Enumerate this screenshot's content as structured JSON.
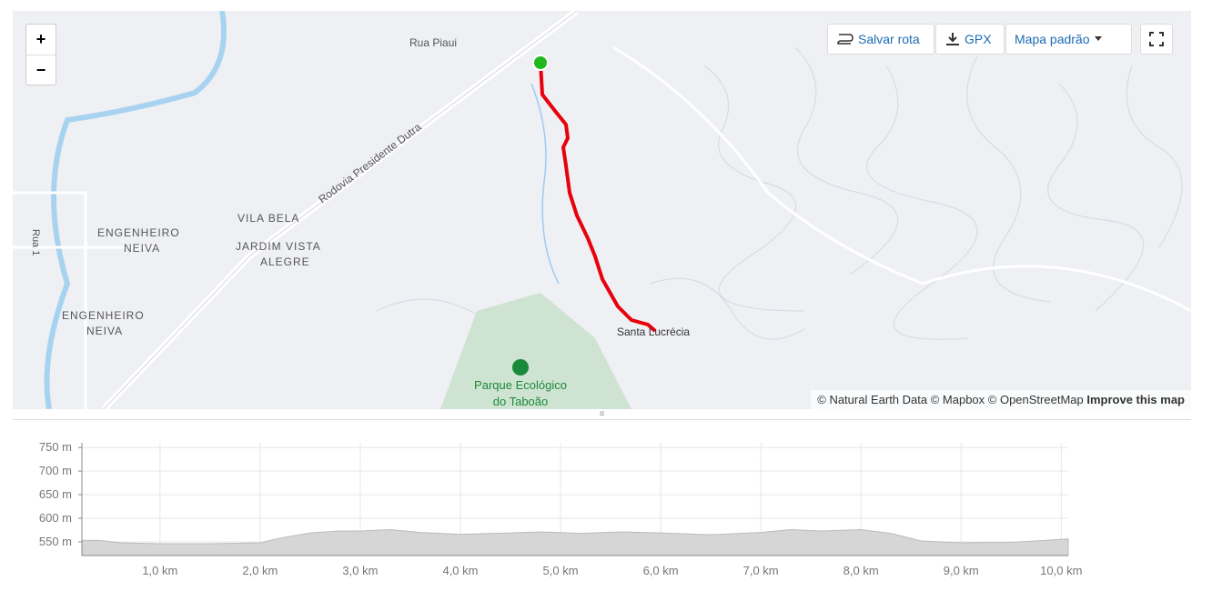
{
  "map": {
    "zoom_in": "+",
    "zoom_out": "−",
    "toolbar": {
      "save_route": "Salvar rota",
      "gpx": "GPX",
      "map_style": "Mapa padrão"
    },
    "labels": {
      "rua_piaui": "Rua Piaui",
      "dutra": "Rodovia Presidente Dutra",
      "vila_bela": "VILA BELA",
      "jardim_1": "JARDIM VISTA",
      "jardim_2": "ALEGRE",
      "eng_neiva_a1": "ENGENHEIRO",
      "eng_neiva_a2": "NEIVA",
      "eng_neiva_b1": "ENGENHEIRO",
      "eng_neiva_b2": "NEIVA",
      "rua_1": "Rua 1",
      "santa_lucrecia": "Santa Lucrécia",
      "parque_1": "Parque Ecológico",
      "parque_2": "do Taboão"
    },
    "attribution": "© Natural Earth Data © Mapbox © OpenStreetMap",
    "improve": "Improve this map"
  },
  "elevation": {
    "xlim": [
      0.22,
      10.07
    ],
    "ylim": [
      521,
      760
    ],
    "yticks": [
      {
        "value": 550,
        "label": "550 m"
      },
      {
        "value": 600,
        "label": "600 m"
      },
      {
        "value": 650,
        "label": "650 m"
      },
      {
        "value": 700,
        "label": "700 m"
      },
      {
        "value": 750,
        "label": "750 m"
      }
    ],
    "xticks": [
      {
        "value": 1,
        "label": "1,0 km"
      },
      {
        "value": 2,
        "label": "2,0 km"
      },
      {
        "value": 3,
        "label": "3,0 km"
      },
      {
        "value": 4,
        "label": "4,0 km"
      },
      {
        "value": 5,
        "label": "5,0 km"
      },
      {
        "value": 6,
        "label": "6,0 km"
      },
      {
        "value": 7,
        "label": "7,0 km"
      },
      {
        "value": 8,
        "label": "8,0 km"
      },
      {
        "value": 9,
        "label": "9,0 km"
      },
      {
        "value": 10,
        "label": "10,0 km"
      }
    ],
    "x": [
      0.22,
      0.4,
      0.6,
      1.0,
      1.5,
      2.0,
      2.2,
      2.5,
      2.8,
      3.0,
      3.3,
      3.6,
      4.0,
      4.5,
      4.8,
      5.2,
      5.6,
      6.0,
      6.5,
      7.0,
      7.3,
      7.6,
      8.0,
      8.3,
      8.6,
      9.0,
      9.5,
      10.07
    ],
    "values": [
      553,
      553,
      548,
      546,
      546,
      548,
      558,
      569,
      573,
      573,
      576,
      570,
      566,
      569,
      571,
      568,
      571,
      569,
      565,
      570,
      576,
      573,
      576,
      568,
      552,
      548,
      549,
      556
    ],
    "color": "#d6d6d6"
  }
}
